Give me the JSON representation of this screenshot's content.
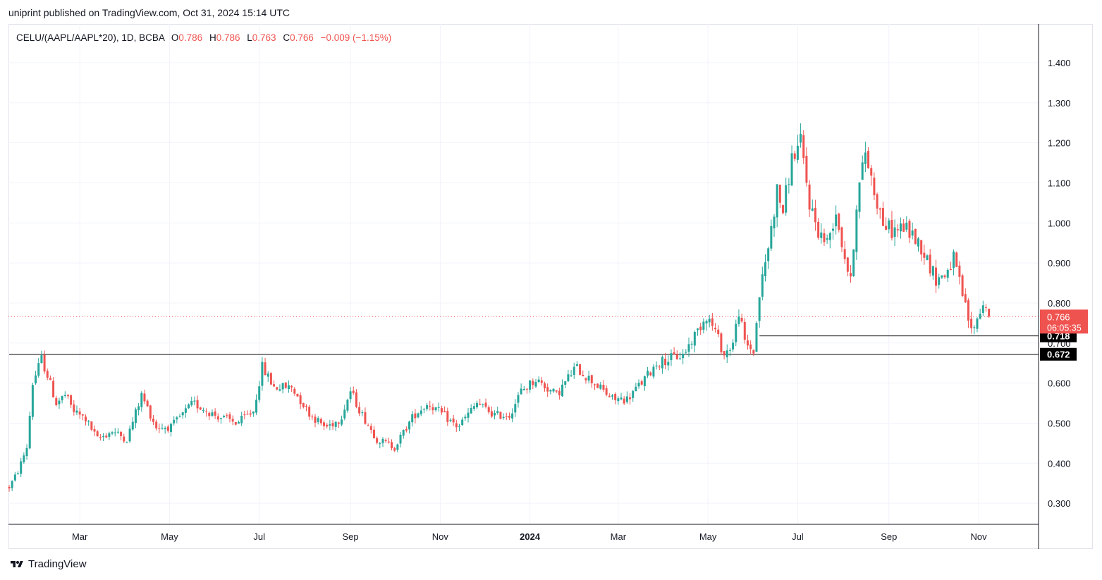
{
  "header": {
    "publisher_line": "uniprint published on TradingView.com, Oct 31, 2024 15:14 UTC"
  },
  "legend": {
    "symbol": "CELU/(AAPL/AAPL*20), 1D, BCBA",
    "o_label": "O",
    "o_value": "0.786",
    "h_label": "H",
    "h_value": "0.786",
    "l_label": "L",
    "l_value": "0.763",
    "c_label": "C",
    "c_value": "0.766",
    "change": "−0.009 (−1.15%)"
  },
  "footer": {
    "brand": "TradingView"
  },
  "colors": {
    "up": "#26a69a",
    "down": "#ef5350",
    "grid": "#f0f3fa",
    "text": "#131722",
    "axis": "#131722"
  },
  "chart_data": {
    "type": "candlestick",
    "title": "CELU/(AAPL/AAPL*20), 1D, BCBA",
    "y_range": [
      0.25,
      1.5
    ],
    "y_ticks": [
      "0.300",
      "0.400",
      "0.500",
      "0.600",
      "0.700",
      "0.800",
      "0.900",
      "1.000",
      "1.100",
      "1.200",
      "1.300",
      "1.400"
    ],
    "y_tick_values": [
      0.3,
      0.4,
      0.5,
      0.6,
      0.7,
      0.8,
      0.9,
      1.0,
      1.1,
      1.2,
      1.3,
      1.4
    ],
    "x_range_days": [
      0,
      670
    ],
    "x_ticks": [
      {
        "label": "Mar",
        "day": 48,
        "bold": false
      },
      {
        "label": "May",
        "day": 109,
        "bold": false
      },
      {
        "label": "Jul",
        "day": 170,
        "bold": false
      },
      {
        "label": "Sep",
        "day": 232,
        "bold": false
      },
      {
        "label": "Nov",
        "day": 293,
        "bold": false
      },
      {
        "label": "2024",
        "day": 354,
        "bold": true
      },
      {
        "label": "Mar",
        "day": 414,
        "bold": false
      },
      {
        "label": "May",
        "day": 475,
        "bold": false
      },
      {
        "label": "Jul",
        "day": 536,
        "bold": false
      },
      {
        "label": "Sep",
        "day": 598,
        "bold": false
      },
      {
        "label": "Nov",
        "day": 659,
        "bold": false
      }
    ],
    "path": [
      [
        0,
        0.34
      ],
      [
        6,
        0.38
      ],
      [
        12,
        0.44
      ],
      [
        16,
        0.6
      ],
      [
        22,
        0.66
      ],
      [
        26,
        0.62
      ],
      [
        32,
        0.55
      ],
      [
        38,
        0.57
      ],
      [
        44,
        0.53
      ],
      [
        52,
        0.51
      ],
      [
        60,
        0.46
      ],
      [
        70,
        0.48
      ],
      [
        80,
        0.46
      ],
      [
        90,
        0.57
      ],
      [
        100,
        0.49
      ],
      [
        110,
        0.49
      ],
      [
        125,
        0.55
      ],
      [
        140,
        0.52
      ],
      [
        155,
        0.5
      ],
      [
        166,
        0.53
      ],
      [
        172,
        0.64
      ],
      [
        180,
        0.59
      ],
      [
        192,
        0.59
      ],
      [
        205,
        0.52
      ],
      [
        215,
        0.49
      ],
      [
        225,
        0.51
      ],
      [
        232,
        0.58
      ],
      [
        240,
        0.52
      ],
      [
        250,
        0.46
      ],
      [
        262,
        0.44
      ],
      [
        275,
        0.52
      ],
      [
        285,
        0.55
      ],
      [
        295,
        0.52
      ],
      [
        305,
        0.49
      ],
      [
        318,
        0.55
      ],
      [
        330,
        0.52
      ],
      [
        340,
        0.52
      ],
      [
        348,
        0.58
      ],
      [
        358,
        0.61
      ],
      [
        372,
        0.57
      ],
      [
        385,
        0.64
      ],
      [
        398,
        0.6
      ],
      [
        410,
        0.56
      ],
      [
        420,
        0.56
      ],
      [
        432,
        0.61
      ],
      [
        440,
        0.65
      ],
      [
        448,
        0.66
      ],
      [
        458,
        0.67
      ],
      [
        466,
        0.72
      ],
      [
        474,
        0.77
      ],
      [
        480,
        0.73
      ],
      [
        486,
        0.67
      ],
      [
        492,
        0.7
      ],
      [
        496,
        0.78
      ],
      [
        500,
        0.7
      ],
      [
        506,
        0.68
      ],
      [
        510,
        0.82
      ],
      [
        516,
        0.94
      ],
      [
        522,
        1.08
      ],
      [
        526,
        1.03
      ],
      [
        532,
        1.16
      ],
      [
        538,
        1.2
      ],
      [
        544,
        1.05
      ],
      [
        550,
        0.98
      ],
      [
        556,
        0.95
      ],
      [
        562,
        1.03
      ],
      [
        566,
        0.95
      ],
      [
        572,
        0.85
      ],
      [
        576,
        1.05
      ],
      [
        582,
        1.18
      ],
      [
        588,
        1.08
      ],
      [
        594,
        1.0
      ],
      [
        600,
        0.98
      ],
      [
        608,
        0.99
      ],
      [
        614,
        0.97
      ],
      [
        620,
        0.94
      ],
      [
        630,
        0.86
      ],
      [
        636,
        0.87
      ],
      [
        642,
        0.91
      ],
      [
        648,
        0.82
      ],
      [
        654,
        0.73
      ],
      [
        658,
        0.76
      ],
      [
        662,
        0.8
      ],
      [
        666,
        0.77
      ]
    ],
    "last_candle": {
      "open": 0.786,
      "high": 0.786,
      "low": 0.763,
      "close": 0.766
    },
    "current_price": {
      "label": "0.766",
      "value": 0.766,
      "countdown": "06:05:35"
    },
    "horizontal_levels": [
      {
        "label": "0.718",
        "value": 0.718,
        "from_day": 510
      },
      {
        "label": "0.672",
        "value": 0.672,
        "from_day": 0
      }
    ]
  }
}
